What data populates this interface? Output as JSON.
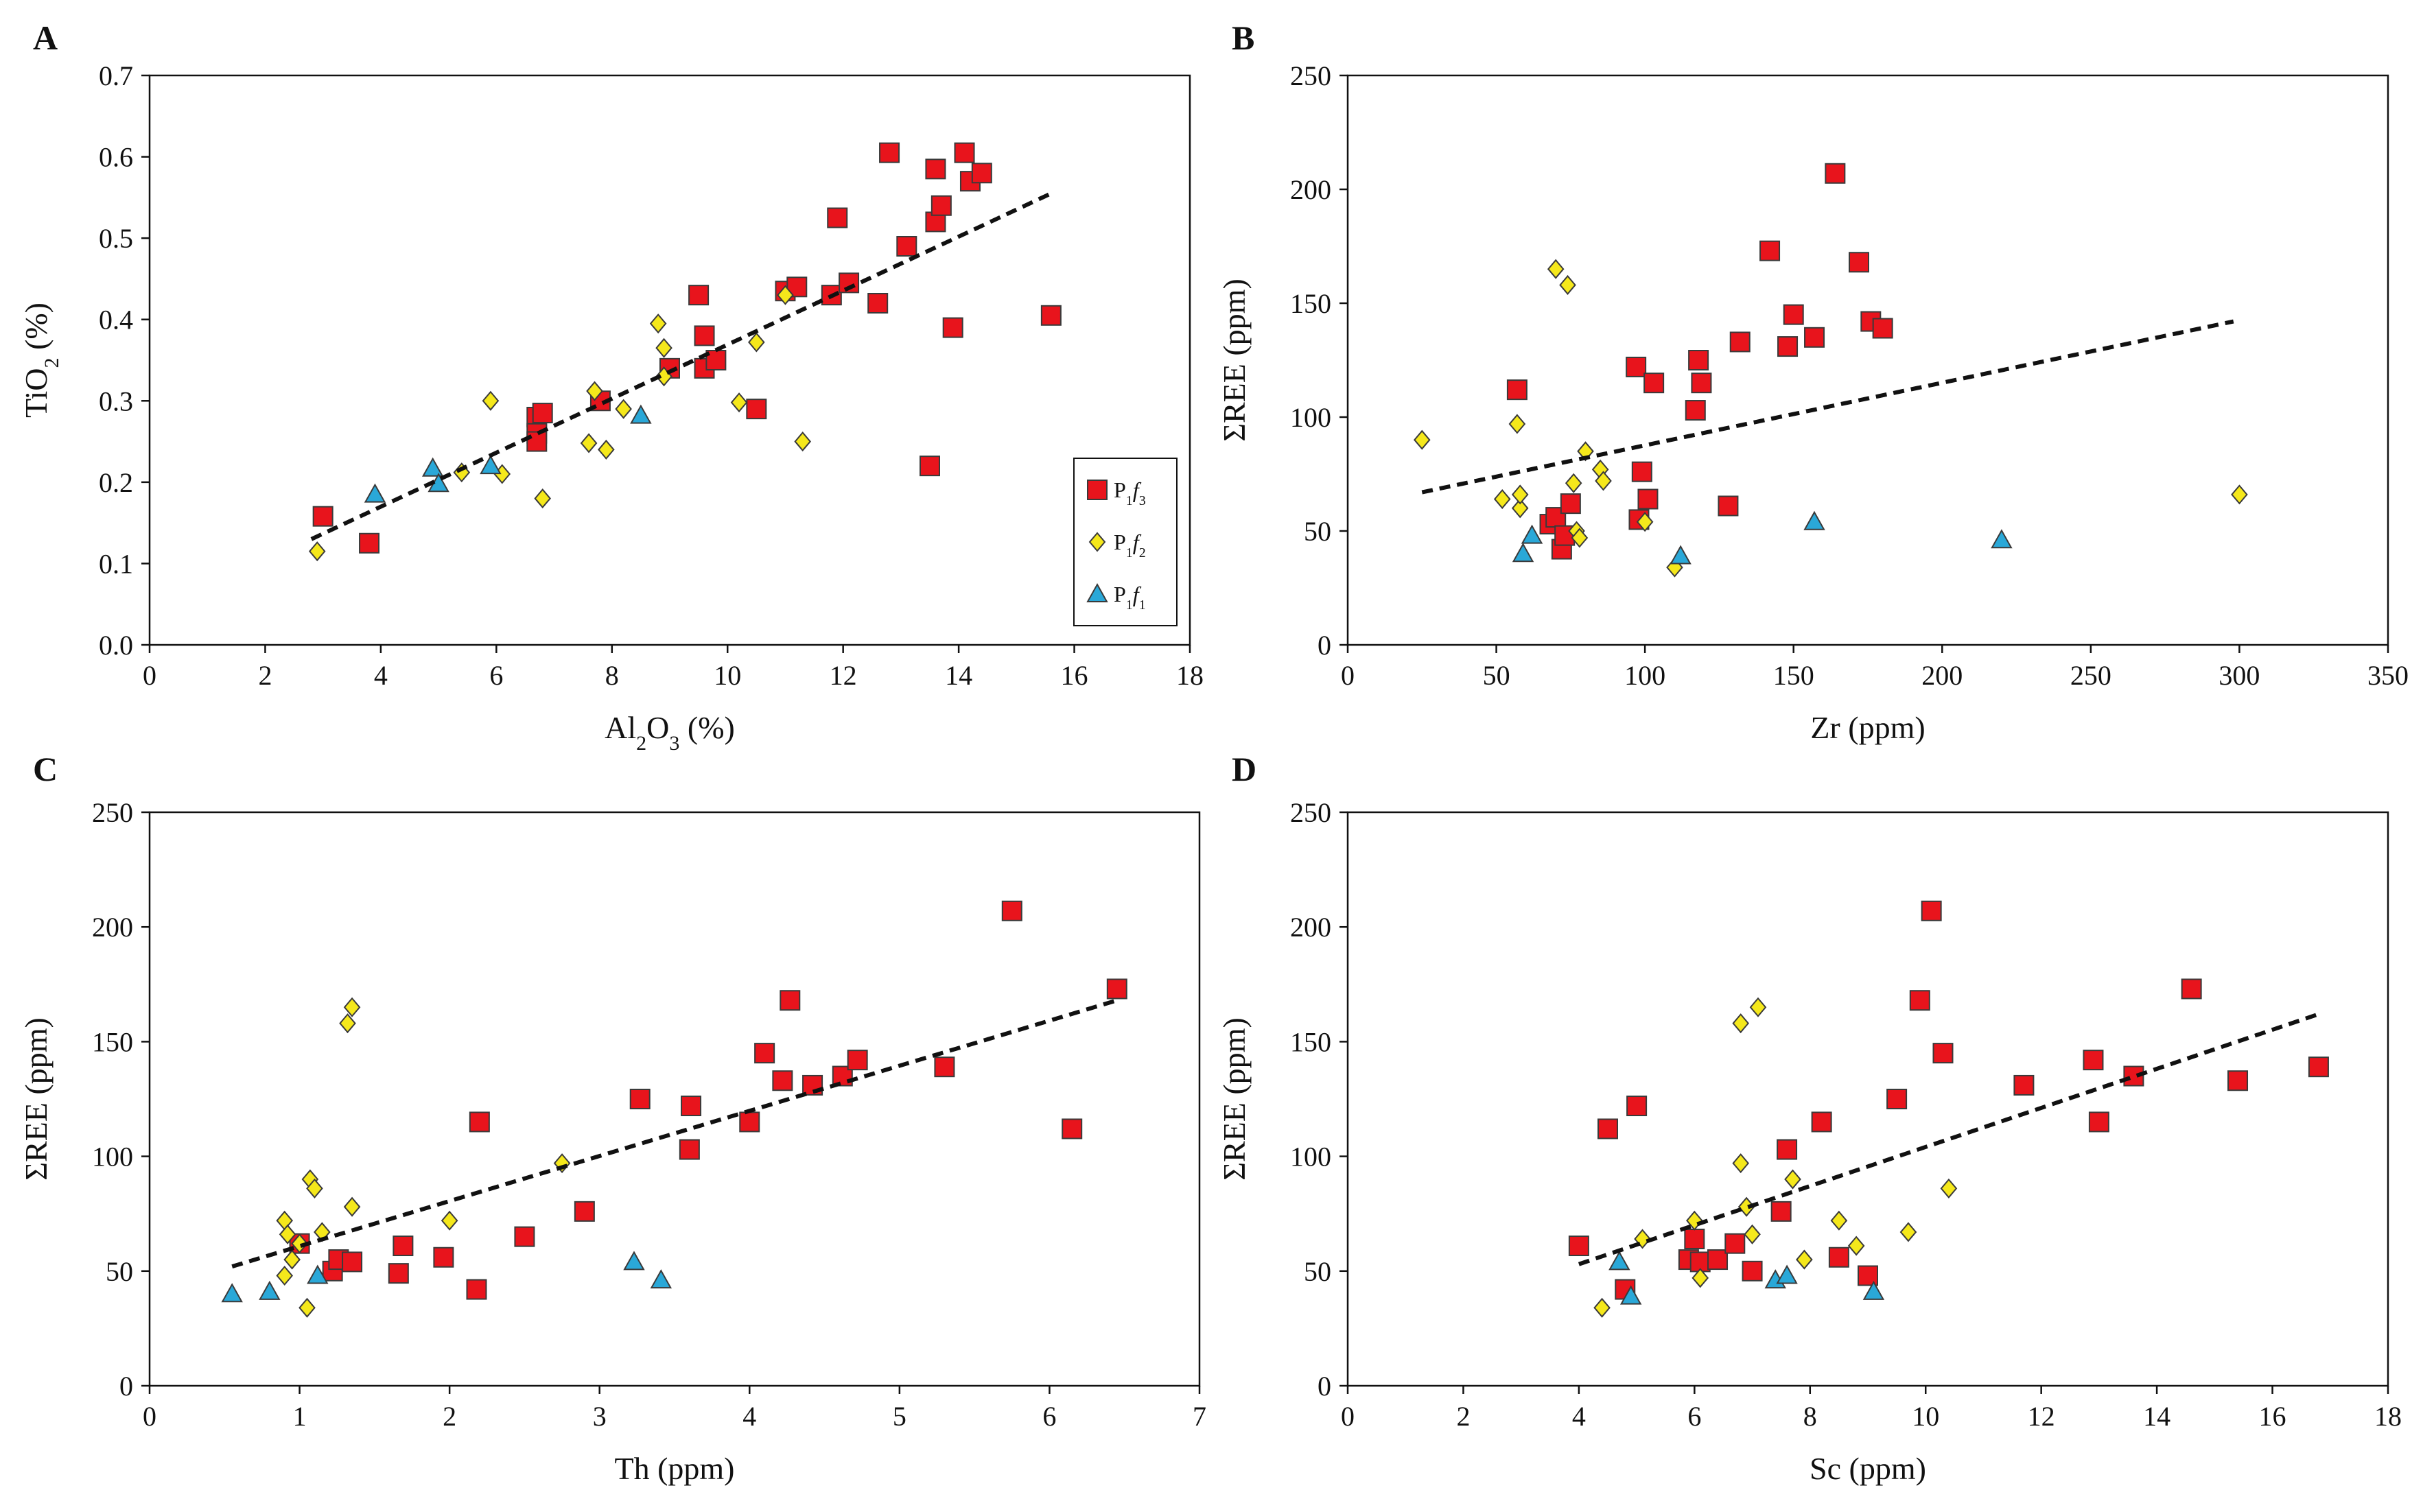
{
  "series_style": {
    "Pf3": {
      "color": "#e8141c",
      "marker": "square"
    },
    "Pf2": {
      "color": "#f5e81b",
      "marker": "diamond"
    },
    "Pf1": {
      "color": "#2aa8d8",
      "marker": "triangle"
    }
  },
  "legend": [
    {
      "key": "Pf3",
      "main": "P",
      "sub1": "1",
      "italic": "f",
      "sub2": "3"
    },
    {
      "key": "Pf2",
      "main": "P",
      "sub1": "1",
      "italic": "f",
      "sub2": "2"
    },
    {
      "key": "Pf1",
      "main": "P",
      "sub1": "1",
      "italic": "f",
      "sub2": "1"
    }
  ],
  "chart_data": [
    {
      "panel": "A",
      "type": "scatter",
      "xlabel": {
        "main": "Al",
        "sub1": "2",
        "mid": "O",
        "sub2": "3",
        "tail": " (%)"
      },
      "ylabel": {
        "main": "TiO",
        "sub": "2",
        "tail": " (%)"
      },
      "xlim": [
        0,
        18
      ],
      "ylim": [
        0,
        0.7
      ],
      "xticks": [
        "0",
        "2",
        "4",
        "6",
        "8",
        "10",
        "12",
        "14",
        "16",
        "18"
      ],
      "yticks": [
        "0.0",
        "0.1",
        "0.2",
        "0.3",
        "0.4",
        "0.5",
        "0.6",
        "0.7"
      ],
      "trend": [
        [
          2.8,
          0.13
        ],
        [
          15.6,
          0.555
        ]
      ],
      "legend_shown": true,
      "series": [
        {
          "name": "Pf3",
          "points": [
            [
              3.0,
              0.158
            ],
            [
              3.8,
              0.125
            ],
            [
              6.7,
              0.28
            ],
            [
              6.8,
              0.285
            ],
            [
              6.7,
              0.26
            ],
            [
              6.7,
              0.25
            ],
            [
              7.8,
              0.3
            ],
            [
              9.0,
              0.34
            ],
            [
              9.5,
              0.43
            ],
            [
              9.6,
              0.38
            ],
            [
              9.6,
              0.34
            ],
            [
              9.8,
              0.35
            ],
            [
              10.5,
              0.29
            ],
            [
              11.0,
              0.435
            ],
            [
              11.2,
              0.44
            ],
            [
              11.8,
              0.43
            ],
            [
              11.9,
              0.525
            ],
            [
              12.1,
              0.445
            ],
            [
              12.6,
              0.42
            ],
            [
              12.8,
              0.605
            ],
            [
              13.1,
              0.49
            ],
            [
              13.5,
              0.22
            ],
            [
              13.6,
              0.585
            ],
            [
              13.6,
              0.52
            ],
            [
              13.7,
              0.54
            ],
            [
              13.9,
              0.39
            ],
            [
              14.1,
              0.605
            ],
            [
              14.2,
              0.57
            ],
            [
              14.4,
              0.58
            ],
            [
              15.6,
              0.405
            ]
          ]
        },
        {
          "name": "Pf2",
          "points": [
            [
              2.9,
              0.115
            ],
            [
              5.4,
              0.212
            ],
            [
              5.9,
              0.3
            ],
            [
              6.1,
              0.21
            ],
            [
              6.8,
              0.18
            ],
            [
              7.6,
              0.248
            ],
            [
              7.7,
              0.312
            ],
            [
              7.9,
              0.24
            ],
            [
              8.2,
              0.29
            ],
            [
              8.8,
              0.395
            ],
            [
              8.9,
              0.33
            ],
            [
              8.9,
              0.365
            ],
            [
              10.2,
              0.298
            ],
            [
              10.5,
              0.372
            ],
            [
              11.0,
              0.43
            ],
            [
              11.3,
              0.25
            ]
          ]
        },
        {
          "name": "Pf1",
          "points": [
            [
              3.9,
              0.185
            ],
            [
              4.9,
              0.217
            ],
            [
              5.0,
              0.198
            ],
            [
              5.9,
              0.22
            ],
            [
              8.5,
              0.282
            ]
          ]
        }
      ]
    },
    {
      "panel": "B",
      "type": "scatter",
      "xlabel": {
        "main": "Zr (ppm)"
      },
      "ylabel": {
        "main": "ΣREE (ppm)"
      },
      "xlim": [
        0,
        350
      ],
      "ylim": [
        0,
        250
      ],
      "xticks": [
        "0",
        "50",
        "100",
        "150",
        "200",
        "250",
        "300",
        "350"
      ],
      "yticks": [
        "0",
        "50",
        "100",
        "150",
        "200",
        "250"
      ],
      "trend": [
        [
          25,
          67
        ],
        [
          298,
          142
        ]
      ],
      "legend_shown": false,
      "series": [
        {
          "name": "Pf3",
          "points": [
            [
              57,
              112
            ],
            [
              68,
              53
            ],
            [
              70,
              56
            ],
            [
              72,
              42
            ],
            [
              73,
              48
            ],
            [
              75,
              62
            ],
            [
              97,
              122
            ],
            [
              98,
              55
            ],
            [
              99,
              76
            ],
            [
              101,
              64
            ],
            [
              103,
              115
            ],
            [
              117,
              103
            ],
            [
              118,
              125
            ],
            [
              119,
              115
            ],
            [
              128,
              61
            ],
            [
              132,
              133
            ],
            [
              142,
              173
            ],
            [
              148,
              131
            ],
            [
              150,
              145
            ],
            [
              157,
              135
            ],
            [
              164,
              207
            ],
            [
              172,
              168
            ],
            [
              176,
              142
            ],
            [
              180,
              139
            ]
          ]
        },
        {
          "name": "Pf2",
          "points": [
            [
              25,
              90
            ],
            [
              52,
              64
            ],
            [
              57,
              97
            ],
            [
              58,
              60
            ],
            [
              58,
              66
            ],
            [
              70,
              165
            ],
            [
              74,
              158
            ],
            [
              76,
              71
            ],
            [
              77,
              50
            ],
            [
              78,
              47
            ],
            [
              80,
              85
            ],
            [
              85,
              77
            ],
            [
              86,
              72
            ],
            [
              100,
              54
            ],
            [
              110,
              34
            ],
            [
              300,
              66
            ]
          ]
        },
        {
          "name": "Pf1",
          "points": [
            [
              59,
              40
            ],
            [
              62,
              48
            ],
            [
              112,
              39
            ],
            [
              157,
              54
            ],
            [
              220,
              46
            ]
          ]
        }
      ]
    },
    {
      "panel": "C",
      "type": "scatter",
      "xlabel": {
        "main": "Th (ppm)"
      },
      "ylabel": {
        "main": "ΣREE (ppm)"
      },
      "xlim": [
        0,
        7
      ],
      "ylim": [
        0,
        250
      ],
      "xticks": [
        "0",
        "1",
        "2",
        "3",
        "4",
        "5",
        "6",
        "7"
      ],
      "yticks": [
        "0",
        "50",
        "100",
        "150",
        "200",
        "250"
      ],
      "trend": [
        [
          0.55,
          52
        ],
        [
          6.45,
          168
        ]
      ],
      "legend_shown": false,
      "series": [
        {
          "name": "Pf3",
          "points": [
            [
              1.0,
              62
            ],
            [
              1.22,
              50
            ],
            [
              1.26,
              55
            ],
            [
              1.35,
              54
            ],
            [
              1.66,
              49
            ],
            [
              1.69,
              61
            ],
            [
              1.96,
              56
            ],
            [
              2.18,
              42
            ],
            [
              2.2,
              115
            ],
            [
              2.5,
              65
            ],
            [
              2.9,
              76
            ],
            [
              3.27,
              125
            ],
            [
              3.6,
              103
            ],
            [
              3.61,
              122
            ],
            [
              4.0,
              115
            ],
            [
              4.1,
              145
            ],
            [
              4.22,
              133
            ],
            [
              4.27,
              168
            ],
            [
              4.42,
              131
            ],
            [
              4.62,
              135
            ],
            [
              4.72,
              142
            ],
            [
              5.3,
              139
            ],
            [
              5.75,
              207
            ],
            [
              6.15,
              112
            ],
            [
              6.45,
              173
            ]
          ]
        },
        {
          "name": "Pf2",
          "points": [
            [
              0.9,
              72
            ],
            [
              0.9,
              48
            ],
            [
              0.92,
              66
            ],
            [
              0.95,
              55
            ],
            [
              1.0,
              62
            ],
            [
              1.05,
              34
            ],
            [
              1.07,
              90
            ],
            [
              1.1,
              86
            ],
            [
              1.15,
              67
            ],
            [
              1.32,
              158
            ],
            [
              1.35,
              165
            ],
            [
              1.35,
              78
            ],
            [
              2.0,
              72
            ],
            [
              2.75,
              97
            ]
          ]
        },
        {
          "name": "Pf1",
          "points": [
            [
              0.55,
              40
            ],
            [
              0.8,
              41
            ],
            [
              1.12,
              48
            ],
            [
              3.23,
              54
            ],
            [
              3.41,
              46
            ]
          ]
        }
      ]
    },
    {
      "panel": "D",
      "type": "scatter",
      "xlabel": {
        "main": "Sc (ppm)"
      },
      "ylabel": {
        "main": "ΣREE (ppm)"
      },
      "xlim": [
        0,
        18
      ],
      "ylim": [
        0,
        250
      ],
      "xticks": [
        "0",
        "2",
        "4",
        "6",
        "8",
        "10",
        "12",
        "14",
        "16",
        "18"
      ],
      "yticks": [
        "0",
        "50",
        "100",
        "150",
        "200",
        "250"
      ],
      "trend": [
        [
          4.0,
          53
        ],
        [
          16.8,
          162
        ]
      ],
      "legend_shown": false,
      "series": [
        {
          "name": "Pf3",
          "points": [
            [
              4.0,
              61
            ],
            [
              4.5,
              112
            ],
            [
              4.8,
              42
            ],
            [
              5.0,
              122
            ],
            [
              5.9,
              55
            ],
            [
              6.0,
              64
            ],
            [
              6.1,
              54
            ],
            [
              6.4,
              55
            ],
            [
              6.7,
              62
            ],
            [
              7.0,
              50
            ],
            [
              7.5,
              76
            ],
            [
              7.6,
              103
            ],
            [
              8.2,
              115
            ],
            [
              8.5,
              56
            ],
            [
              9.0,
              48
            ],
            [
              9.5,
              125
            ],
            [
              9.9,
              168
            ],
            [
              10.1,
              207
            ],
            [
              10.3,
              145
            ],
            [
              11.7,
              131
            ],
            [
              12.9,
              142
            ],
            [
              13.0,
              115
            ],
            [
              13.6,
              135
            ],
            [
              14.6,
              173
            ],
            [
              15.4,
              133
            ],
            [
              16.8,
              139
            ]
          ]
        },
        {
          "name": "Pf2",
          "points": [
            [
              4.4,
              34
            ],
            [
              5.1,
              64
            ],
            [
              6.0,
              72
            ],
            [
              6.1,
              47
            ],
            [
              6.8,
              97
            ],
            [
              6.8,
              158
            ],
            [
              6.9,
              78
            ],
            [
              7.0,
              66
            ],
            [
              7.1,
              165
            ],
            [
              7.7,
              90
            ],
            [
              7.9,
              55
            ],
            [
              8.5,
              72
            ],
            [
              8.8,
              61
            ],
            [
              9.7,
              67
            ],
            [
              10.4,
              86
            ]
          ]
        },
        {
          "name": "Pf1",
          "points": [
            [
              4.7,
              54
            ],
            [
              4.9,
              39
            ],
            [
              7.4,
              46
            ],
            [
              7.6,
              48
            ],
            [
              9.1,
              41
            ]
          ]
        }
      ]
    }
  ]
}
